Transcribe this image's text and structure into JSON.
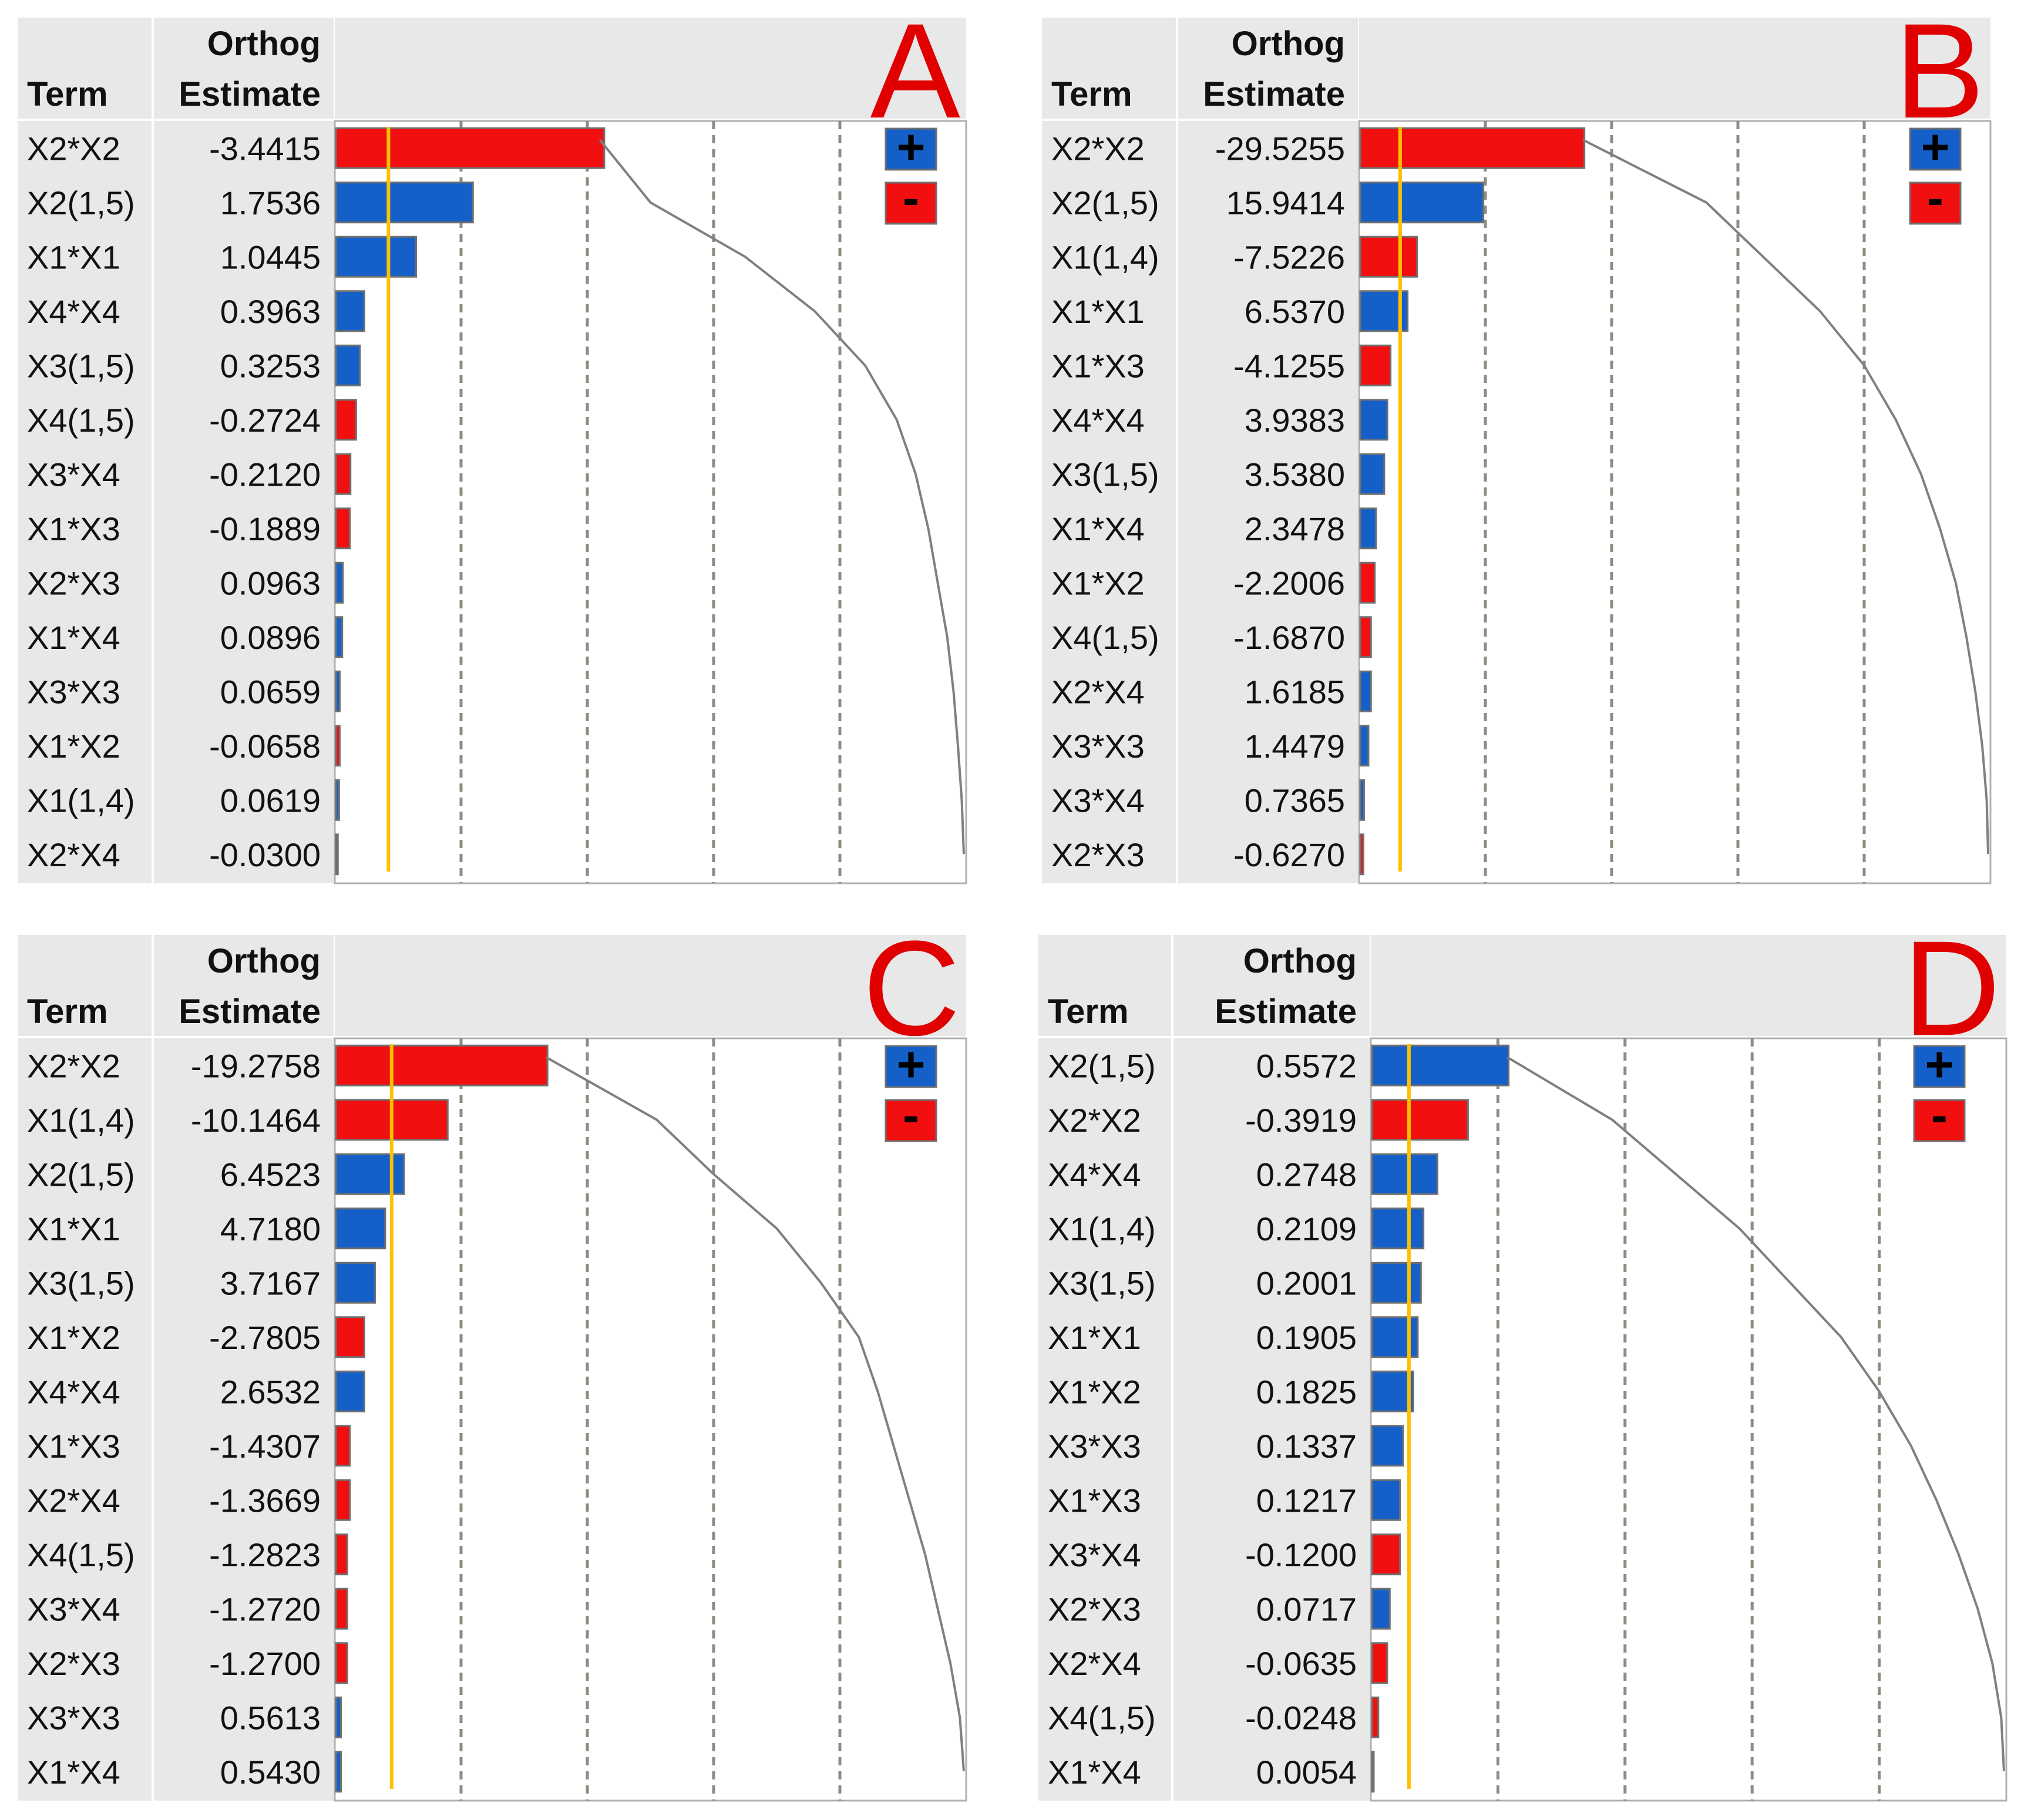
{
  "colors": {
    "positive": "#1460C8",
    "negative": "#F20F0F",
    "header_bg": "#E8E8E8",
    "grid": "#8C8C80",
    "threshold": "#FFC000",
    "curve": "#808080",
    "panel_letter": "#E00000",
    "text": "#111111"
  },
  "legend": {
    "positive_label": "+",
    "negative_label": "-",
    "positive_icon": "plus-icon",
    "negative_icon": "minus-icon"
  },
  "chart_data": [
    {
      "type": "bar",
      "panel_label": "A",
      "title": "",
      "col_term_label": "Term",
      "col_est_label_1": "Orthog",
      "col_est_label_2": "Estimate",
      "xlabel": "",
      "ylabel": "",
      "grid": true,
      "legend_position": "top-right",
      "axis_max": 10,
      "threshold": 0.85,
      "vlines": [
        2,
        4,
        6,
        8
      ],
      "categories": [
        "X2*X2",
        "X2(1,5)",
        "X1*X1",
        "X4*X4",
        "X3(1,5)",
        "X4(1,5)",
        "X3*X4",
        "X1*X3",
        "X2*X3",
        "X1*X4",
        "X3*X3",
        "X1*X2",
        "X1(1,4)",
        "X2*X4"
      ],
      "values": [
        -3.4415,
        1.7536,
        1.0445,
        0.3963,
        0.3253,
        -0.2724,
        -0.212,
        -0.1889,
        0.0963,
        0.0896,
        0.0659,
        -0.0658,
        0.0619,
        -0.03
      ],
      "value_labels": [
        "-3.4415",
        "1.7536",
        "1.0445",
        "0.3963",
        "0.3253",
        "-0.2724",
        "-0.2120",
        "-0.1889",
        "0.0963",
        "0.0896",
        "0.0659",
        "-0.0658",
        "0.0619",
        "-0.0300"
      ],
      "bar_lengths": [
        4.25,
        2.17,
        1.27,
        0.45,
        0.38,
        0.32,
        0.23,
        0.22,
        0.11,
        0.1,
        0.06,
        0.06,
        0.05,
        0.03
      ],
      "curve": [
        4.2,
        5.0,
        6.5,
        7.6,
        8.4,
        8.9,
        9.2,
        9.4,
        9.55,
        9.7,
        9.8,
        9.87,
        9.93,
        10.0
      ]
    },
    {
      "type": "bar",
      "panel_label": "B",
      "title": "",
      "col_term_label": "Term",
      "col_est_label_1": "Orthog",
      "col_est_label_2": "Estimate",
      "xlabel": "",
      "ylabel": "",
      "grid": true,
      "legend_position": "top-right",
      "axis_max": 10,
      "threshold": 0.65,
      "vlines": [
        2,
        4,
        6,
        8
      ],
      "categories": [
        "X2*X2",
        "X2(1,5)",
        "X1(1,4)",
        "X1*X1",
        "X1*X3",
        "X4*X4",
        "X3(1,5)",
        "X1*X4",
        "X1*X2",
        "X4(1,5)",
        "X2*X4",
        "X3*X3",
        "X3*X4",
        "X2*X3"
      ],
      "values": [
        -29.5255,
        15.9414,
        -7.5226,
        6.537,
        -4.1255,
        3.9383,
        3.538,
        2.3478,
        -2.2006,
        -1.687,
        1.6185,
        1.4479,
        0.7365,
        -0.627
      ],
      "value_labels": [
        "-29.5255",
        "15.9414",
        "-7.5226",
        "6.5370",
        "-4.1255",
        "3.9383",
        "3.5380",
        "2.3478",
        "-2.2006",
        "-1.6870",
        "1.6185",
        "1.4479",
        "0.7365",
        "-0.6270"
      ],
      "bar_lengths": [
        3.55,
        1.95,
        0.9,
        0.75,
        0.48,
        0.43,
        0.38,
        0.25,
        0.23,
        0.17,
        0.17,
        0.13,
        0.06,
        0.05
      ],
      "curve": [
        3.55,
        5.5,
        6.4,
        7.3,
        8.0,
        8.5,
        8.9,
        9.2,
        9.45,
        9.62,
        9.76,
        9.87,
        9.94,
        10.0
      ]
    },
    {
      "type": "bar",
      "panel_label": "C",
      "title": "",
      "col_term_label": "Term",
      "col_est_label_1": "Orthog",
      "col_est_label_2": "Estimate",
      "xlabel": "",
      "ylabel": "",
      "grid": true,
      "legend_position": "top-right",
      "axis_max": 10,
      "threshold": 0.9,
      "vlines": [
        2,
        4,
        6,
        8
      ],
      "categories": [
        "X2*X2",
        "X1(1,4)",
        "X2(1,5)",
        "X1*X1",
        "X3(1,5)",
        "X1*X2",
        "X4*X4",
        "X1*X3",
        "X2*X4",
        "X4(1,5)",
        "X3*X4",
        "X2*X3",
        "X3*X3",
        "X1*X4"
      ],
      "values": [
        -19.2758,
        -10.1464,
        6.4523,
        4.718,
        3.7167,
        -2.7805,
        2.6532,
        -1.4307,
        -1.3669,
        -1.2823,
        -1.272,
        -1.27,
        0.5613,
        0.543
      ],
      "value_labels": [
        "-19.2758",
        "-10.1464",
        "6.4523",
        "4.7180",
        "3.7167",
        "-2.7805",
        "2.6532",
        "-1.4307",
        "-1.3669",
        "-1.2823",
        "-1.2720",
        "-1.2700",
        "0.5613",
        "0.5430"
      ],
      "bar_lengths": [
        3.35,
        1.77,
        1.08,
        0.78,
        0.62,
        0.45,
        0.45,
        0.22,
        0.22,
        0.18,
        0.18,
        0.18,
        0.08,
        0.08
      ],
      "curve": [
        3.35,
        5.1,
        6.0,
        7.0,
        7.7,
        8.3,
        8.6,
        8.85,
        9.1,
        9.35,
        9.55,
        9.75,
        9.9,
        10.0
      ]
    },
    {
      "type": "bar",
      "panel_label": "D",
      "title": "",
      "col_term_label": "Term",
      "col_est_label_1": "Orthog",
      "col_est_label_2": "Estimate",
      "xlabel": "",
      "ylabel": "",
      "grid": true,
      "legend_position": "top-right",
      "axis_max": 10,
      "threshold": 0.6,
      "vlines": [
        2,
        4,
        6,
        8
      ],
      "categories": [
        "X2(1,5)",
        "X2*X2",
        "X4*X4",
        "X1(1,4)",
        "X3(1,5)",
        "X1*X1",
        "X1*X2",
        "X3*X3",
        "X1*X3",
        "X3*X4",
        "X2*X3",
        "X2*X4",
        "X4(1,5)",
        "X1*X4"
      ],
      "values": [
        0.5572,
        -0.3919,
        0.2748,
        0.2109,
        0.2001,
        0.1905,
        0.1825,
        0.1337,
        0.1217,
        -0.12,
        0.0717,
        -0.0635,
        -0.0248,
        0.0054
      ],
      "value_labels": [
        "0.5572",
        "-0.3919",
        "0.2748",
        "0.2109",
        "0.2001",
        "0.1905",
        "0.1825",
        "0.1337",
        "0.1217",
        "-0.1200",
        "0.0717",
        "-0.0635",
        "-0.0248",
        "0.0054"
      ],
      "bar_lengths": [
        2.15,
        1.51,
        1.03,
        0.81,
        0.77,
        0.72,
        0.65,
        0.49,
        0.44,
        0.44,
        0.28,
        0.24,
        0.1,
        0.02
      ],
      "curve": [
        2.15,
        3.8,
        4.8,
        5.8,
        6.6,
        7.4,
        8.0,
        8.5,
        8.9,
        9.25,
        9.55,
        9.78,
        9.92,
        10.0
      ]
    }
  ]
}
